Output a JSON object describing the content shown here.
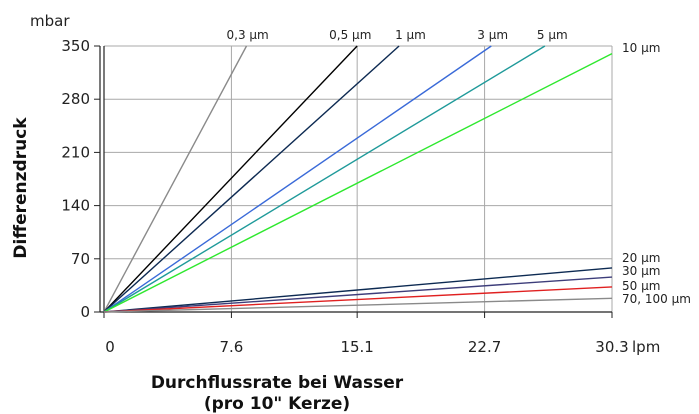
{
  "chart_data": {
    "type": "line",
    "xlabel_line1": "Durchflussrate bei Wasser",
    "xlabel_line2": "(pro 10\" Kerze)",
    "ylabel": "Differenzdruck",
    "x_unit": "lpm",
    "y_unit": "mbar",
    "xlim": [
      0,
      30.3
    ],
    "ylim": [
      0,
      350
    ],
    "x_ticks": [
      "0",
      "7.6",
      "15.1",
      "22.7",
      "30.3"
    ],
    "x_tick_values": [
      0,
      7.6,
      15.1,
      22.7,
      30.3
    ],
    "y_ticks": [
      "0",
      "70",
      "140",
      "210",
      "280",
      "350"
    ],
    "y_tick_values": [
      0,
      70,
      140,
      210,
      280,
      350
    ],
    "grid": true,
    "series": [
      {
        "name": "0,3 µm",
        "color": "#8a8a8a",
        "x": [
          0,
          8.5
        ],
        "y": [
          0,
          350
        ]
      },
      {
        "name": "0,5 µm",
        "color": "#000000",
        "x": [
          0,
          15.1
        ],
        "y": [
          0,
          350
        ]
      },
      {
        "name": "1 µm",
        "color": "#0d2a52",
        "x": [
          0,
          17.6
        ],
        "y": [
          0,
          350
        ]
      },
      {
        "name": "3 µm",
        "color": "#3a6ad8",
        "x": [
          0,
          23.1
        ],
        "y": [
          0,
          350
        ]
      },
      {
        "name": "5 µm",
        "color": "#1f9a9a",
        "x": [
          0,
          26.3
        ],
        "y": [
          0,
          350
        ]
      },
      {
        "name": "10 µm",
        "color": "#2ee82e",
        "x": [
          0,
          30.3
        ],
        "y": [
          0,
          340
        ]
      },
      {
        "name": "20 µm",
        "color": "#0d2a52",
        "x": [
          0,
          30.3
        ],
        "y": [
          0,
          58
        ]
      },
      {
        "name": "30 µm",
        "color": "#3d3d7a",
        "x": [
          0,
          30.3
        ],
        "y": [
          0,
          46
        ]
      },
      {
        "name": "50 µm",
        "color": "#e02020",
        "x": [
          0,
          30.3
        ],
        "y": [
          0,
          33
        ]
      },
      {
        "name": "70, 100 µm",
        "color": "#8a8a8a",
        "x": [
          0,
          30.3
        ],
        "y": [
          0,
          18
        ]
      }
    ]
  }
}
